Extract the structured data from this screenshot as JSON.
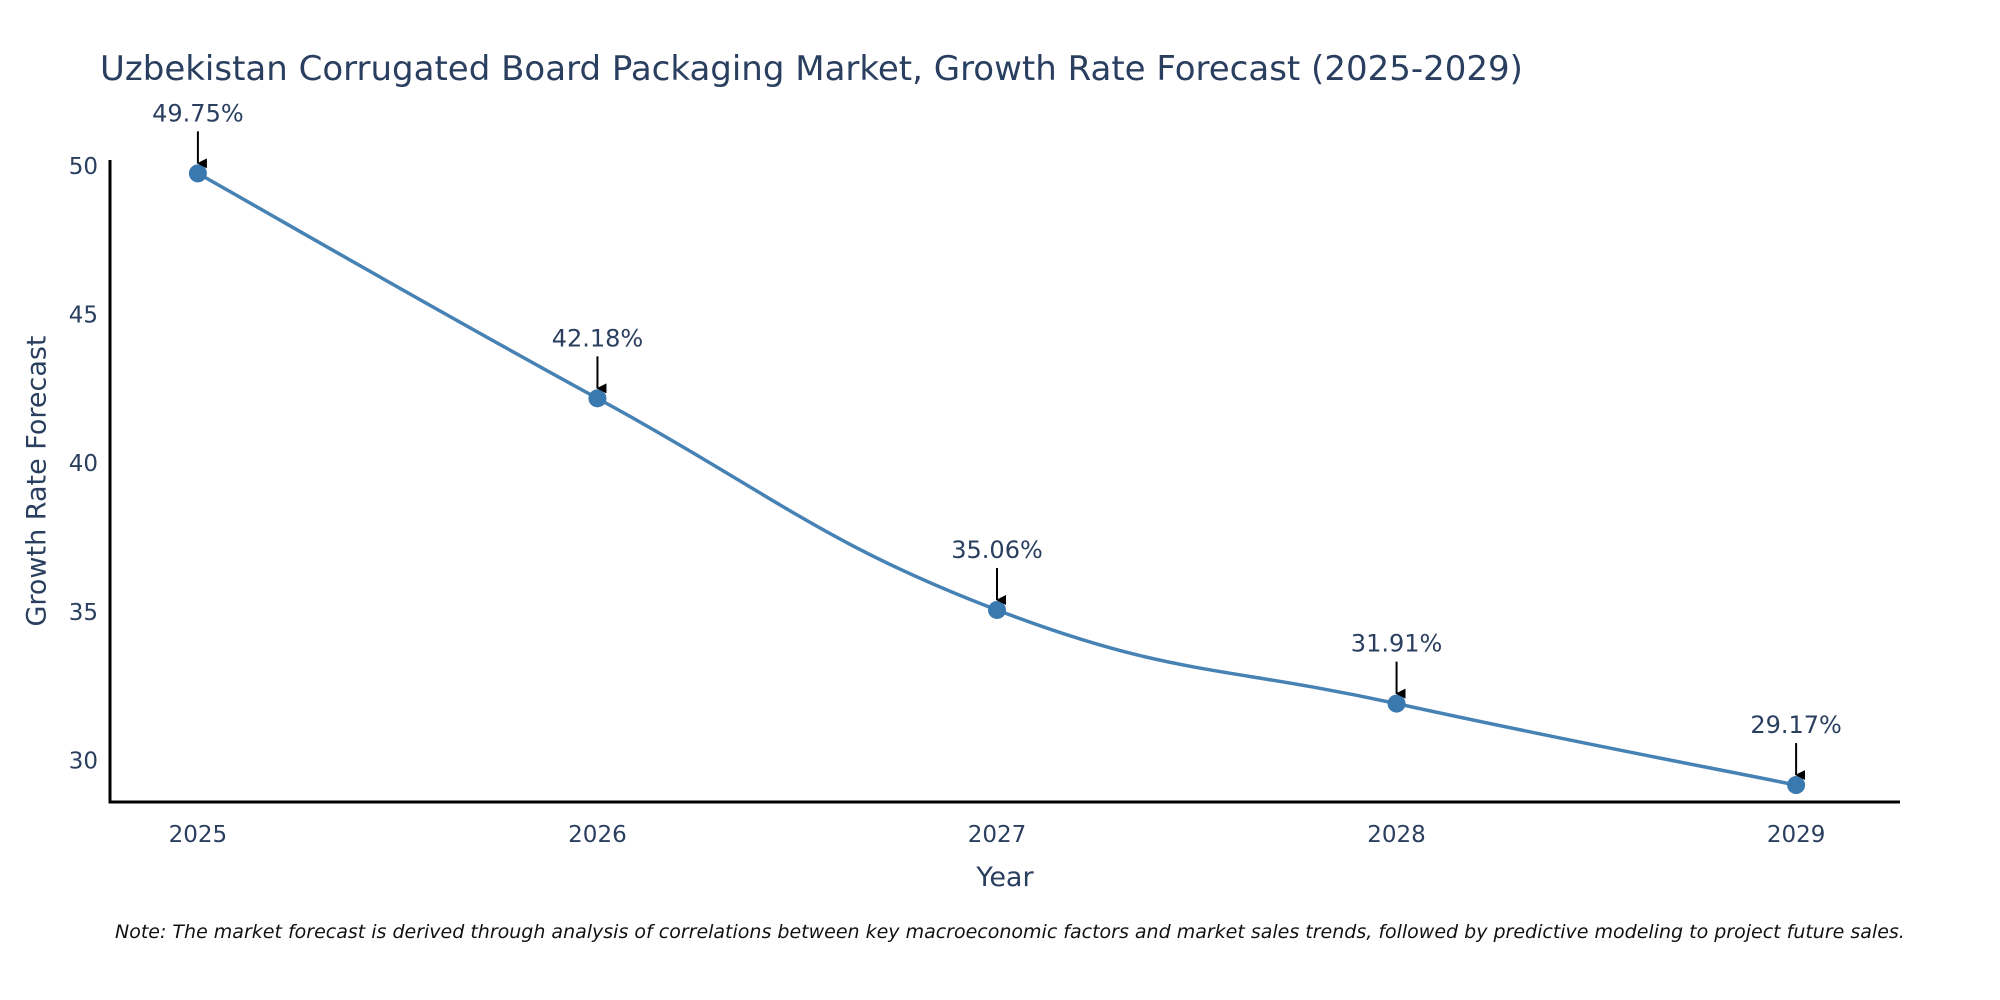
{
  "colors": {
    "line": "#4682b4",
    "marker": "#3a78b0",
    "axis": "#000000",
    "text": "#2a3f5f",
    "arrow": "#000000"
  },
  "chart_data": {
    "type": "line",
    "title": "Uzbekistan Corrugated Board Packaging Market, Growth Rate Forecast (2025-2029)",
    "xlabel": "Year",
    "ylabel": "Growth Rate Forecast",
    "categories": [
      "2025",
      "2026",
      "2027",
      "2028",
      "2029"
    ],
    "x": [
      2025,
      2026,
      2027,
      2028,
      2029
    ],
    "series": [
      {
        "name": "Growth Rate Forecast",
        "values": [
          49.75,
          42.18,
          35.06,
          31.91,
          29.17
        ],
        "labels": [
          "49.75%",
          "42.18%",
          "35.06%",
          "31.91%",
          "29.17%"
        ]
      }
    ],
    "xlim": [
      2024.78,
      2029.26
    ],
    "ylim": [
      28.6,
      50.2
    ],
    "yticks": [
      30,
      35,
      40,
      45,
      50
    ],
    "yticklabels": [
      "30",
      "35",
      "40",
      "45",
      "50"
    ],
    "grid": false,
    "legend": "none",
    "line_shape": "spline"
  },
  "note": "Note: The market forecast is derived through analysis of correlations between key macroeconomic factors and market sales trends, followed by predictive modeling to project future sales."
}
